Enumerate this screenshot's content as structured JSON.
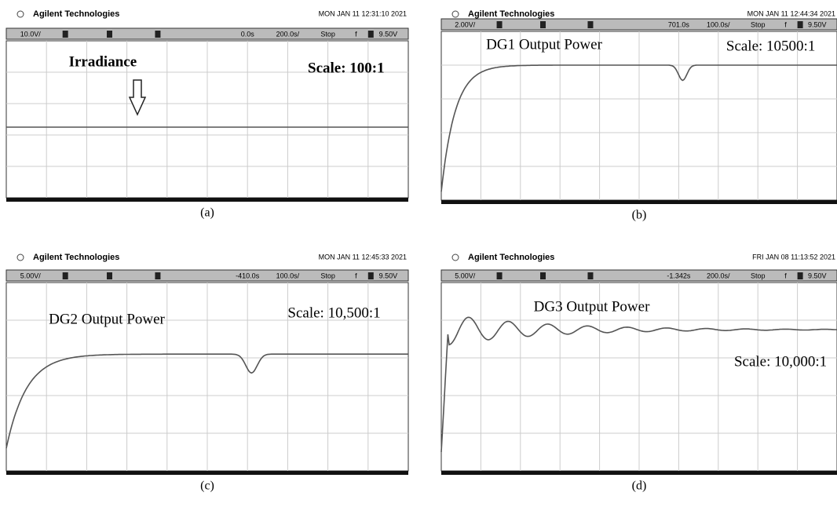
{
  "panels": [
    {
      "brand": "Agilent Technologies",
      "timestamp": "MON JAN 11 12:31:10 2021",
      "toolbar": [
        "10.0V/",
        "0.0s",
        "200.0s/",
        "Stop",
        "f",
        "9.50V"
      ],
      "label": "Irradiance",
      "scale": "Scale: 100:1",
      "caption": "(a)"
    },
    {
      "brand": "Agilent Technologies",
      "timestamp": "MON JAN 11 12:44:34 2021",
      "toolbar": [
        "2.00V/",
        "701.0s",
        "100.0s/",
        "Stop",
        "f",
        "9.50V"
      ],
      "label": "DG1 Output Power",
      "scale": "Scale: 10500:1",
      "caption": "(b)"
    },
    {
      "brand": "Agilent Technologies",
      "timestamp": "MON JAN 11 12:45:33 2021",
      "toolbar": [
        "5.00V/",
        "-410.0s",
        "100.0s/",
        "Stop",
        "f",
        "9.50V"
      ],
      "label": "DG2 Output Power",
      "scale": "Scale: 10,500:1",
      "caption": "(c)"
    },
    {
      "brand": "Agilent Technologies",
      "timestamp": "FRI JAN 08 11:13:52 2021",
      "toolbar": [
        "5.00V/",
        "-1.342s",
        "200.0s/",
        "Stop",
        "f",
        "9.50V"
      ],
      "label": "DG3 Output Power",
      "scale": "Scale: 10,000:1",
      "caption": "(d)"
    }
  ]
}
